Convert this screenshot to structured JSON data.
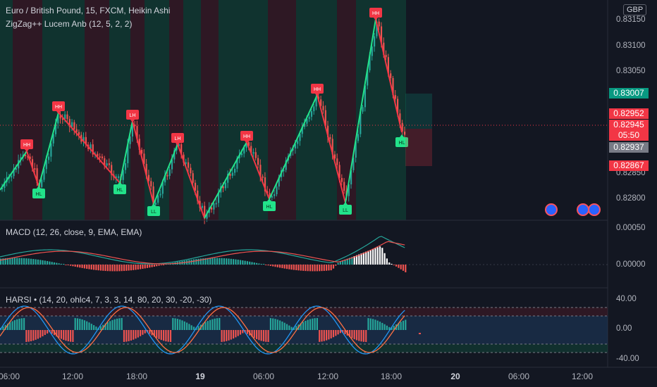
{
  "header": {
    "symbol": "Euro / British Pound, 15, FXCM, Heikin Ashi",
    "indicator": "ZigZag++ Lucem Anb (12, 5, 2, 2)",
    "currency": "GBP"
  },
  "price_axis": {
    "ticks": [
      "0.83150",
      "0.83100",
      "0.83050",
      "0.82850",
      "0.82800"
    ],
    "boxes": [
      {
        "label": "0.83007",
        "color": "#089981"
      },
      {
        "label": "0.82952",
        "color": "#f23645"
      },
      {
        "label": "0.82945",
        "color": "#f23645"
      },
      {
        "label": "05:50",
        "color": "#f23645"
      },
      {
        "label": "0.82937",
        "color": "#787b86"
      },
      {
        "label": "0.82867",
        "color": "#f23645"
      }
    ]
  },
  "macd": {
    "title": "MACD (12, 26, close, 9, EMA, EMA)",
    "ticks": [
      "0.00050",
      "0.00000"
    ]
  },
  "harsi": {
    "title": "HARSI • (14, 20, ohlc4, 7, 3, 3, 14, 80, 20, 30, -20, -30)",
    "ticks": [
      "40.00",
      "0.00",
      "-40.00"
    ]
  },
  "time_axis": [
    "06:00",
    "12:00",
    "18:00",
    "19",
    "06:00",
    "12:00",
    "18:00",
    "20",
    "06:00",
    "12:00"
  ],
  "zigzag_labels": [
    "HH",
    "HL",
    "HH",
    "HL",
    "LH",
    "LL",
    "LH",
    "HH",
    "HL",
    "HH",
    "LL",
    "HH",
    "HL"
  ],
  "chart_data": {
    "type": "candlestick",
    "price_range": [
      0.8275,
      0.8318
    ],
    "zigzag": [
      {
        "label": "HH",
        "price": 0.8289
      },
      {
        "label": "HL",
        "price": 0.828
      },
      {
        "label": "HH",
        "price": 0.8296
      },
      {
        "label": "HL",
        "price": 0.8282
      },
      {
        "label": "LH",
        "price": 0.8295
      },
      {
        "label": "LL",
        "price": 0.8277
      },
      {
        "label": "LH",
        "price": 0.8291
      },
      {
        "label": "HH",
        "price": 0.8291
      },
      {
        "label": "HL",
        "price": 0.8281
      },
      {
        "label": "HH",
        "price": 0.83
      },
      {
        "label": "LL",
        "price": 0.828
      },
      {
        "label": "HH",
        "price": 0.8315
      },
      {
        "label": "HL",
        "price": 0.8292
      }
    ],
    "last_price": 0.82945
  },
  "colors": {
    "up": "#26a69a",
    "down": "#ef5350",
    "zigzag_up": "#22e38a",
    "zigzag_down": "#f23645"
  }
}
